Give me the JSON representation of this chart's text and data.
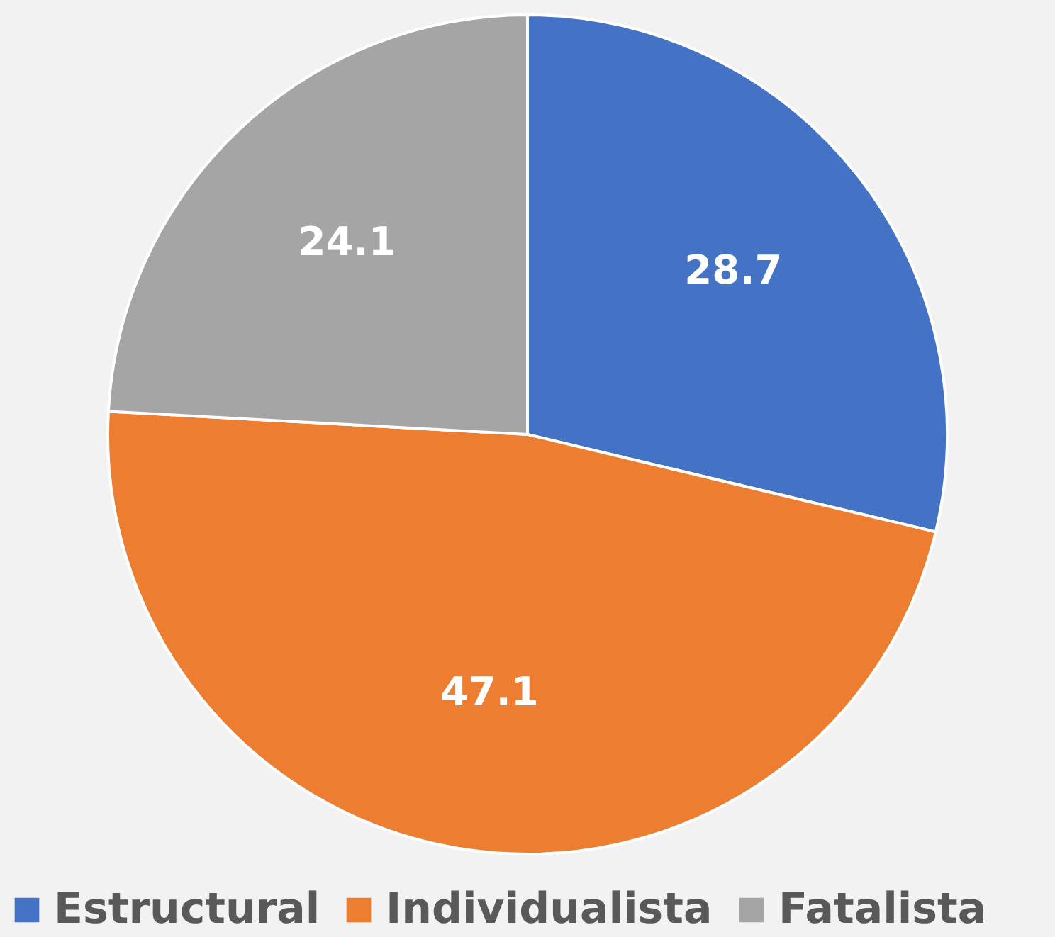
{
  "chart_data": {
    "type": "pie",
    "categories": [
      "Estructural",
      "Individualista",
      "Fatalista"
    ],
    "values": [
      28.7,
      47.1,
      24.1
    ],
    "colors": [
      "#4472c4",
      "#ed7d31",
      "#a5a5a5"
    ],
    "data_labels": true,
    "legend": "bottom"
  }
}
